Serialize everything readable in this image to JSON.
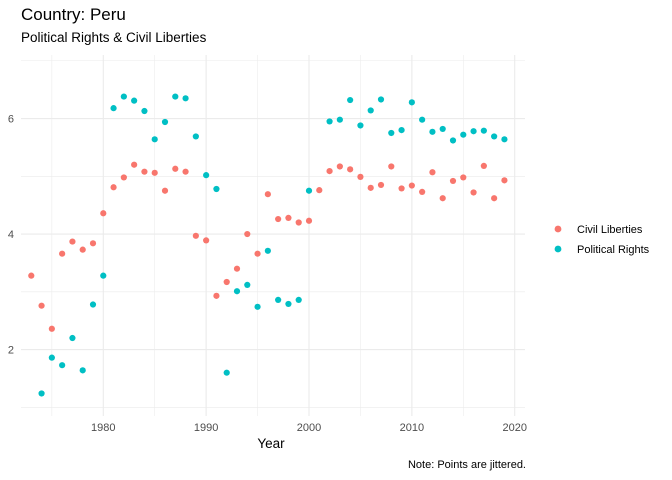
{
  "title": "Country: Peru",
  "subtitle": "Political Rights & Civil Liberties",
  "caption": "Note: Points are jittered.",
  "chart_data": {
    "type": "scatter",
    "xlabel": "Year",
    "ylabel": "",
    "xlim": [
      1972,
      2021
    ],
    "ylim": [
      0.85,
      7.1
    ],
    "x_ticks": [
      1980,
      1990,
      2000,
      2010,
      2020
    ],
    "y_ticks": [
      2,
      4,
      6
    ],
    "grid": true,
    "legend_position": "right",
    "series": [
      {
        "name": "Civil Liberties",
        "color": "#F8766D",
        "points": [
          [
            1973,
            3.28
          ],
          [
            1974,
            2.76
          ],
          [
            1975,
            2.36
          ],
          [
            1976,
            3.66
          ],
          [
            1977,
            3.87
          ],
          [
            1978,
            3.73
          ],
          [
            1979,
            3.84
          ],
          [
            1980,
            4.36
          ],
          [
            1981,
            4.81
          ],
          [
            1982,
            4.98
          ],
          [
            1983,
            5.2
          ],
          [
            1984,
            5.08
          ],
          [
            1985,
            5.06
          ],
          [
            1986,
            4.75
          ],
          [
            1987,
            5.13
          ],
          [
            1988,
            5.08
          ],
          [
            1989,
            3.97
          ],
          [
            1990,
            3.89
          ],
          [
            1991,
            2.93
          ],
          [
            1992,
            3.17
          ],
          [
            1993,
            3.4
          ],
          [
            1994,
            4.0
          ],
          [
            1995,
            3.66
          ],
          [
            1996,
            4.69
          ],
          [
            1997,
            4.26
          ],
          [
            1998,
            4.28
          ],
          [
            1999,
            4.2
          ],
          [
            2000,
            4.23
          ],
          [
            2001,
            4.76
          ],
          [
            2002,
            5.09
          ],
          [
            2003,
            5.17
          ],
          [
            2004,
            5.12
          ],
          [
            2005,
            4.99
          ],
          [
            2006,
            4.8
          ],
          [
            2007,
            4.85
          ],
          [
            2008,
            5.17
          ],
          [
            2009,
            4.79
          ],
          [
            2010,
            4.84
          ],
          [
            2011,
            4.73
          ],
          [
            2012,
            5.07
          ],
          [
            2013,
            4.62
          ],
          [
            2014,
            4.92
          ],
          [
            2015,
            4.98
          ],
          [
            2016,
            4.72
          ],
          [
            2017,
            5.18
          ],
          [
            2018,
            4.62
          ],
          [
            2019,
            4.93
          ]
        ]
      },
      {
        "name": "Political Rights",
        "color": "#00BFC4",
        "points": [
          [
            1974,
            1.24
          ],
          [
            1975,
            1.86
          ],
          [
            1976,
            1.73
          ],
          [
            1977,
            2.2
          ],
          [
            1978,
            1.64
          ],
          [
            1979,
            2.78
          ],
          [
            1980,
            3.28
          ],
          [
            1981,
            6.18
          ],
          [
            1982,
            6.38
          ],
          [
            1983,
            6.31
          ],
          [
            1984,
            6.13
          ],
          [
            1985,
            5.64
          ],
          [
            1986,
            5.94
          ],
          [
            1987,
            6.38
          ],
          [
            1988,
            6.35
          ],
          [
            1989,
            5.69
          ],
          [
            1990,
            5.02
          ],
          [
            1991,
            4.78
          ],
          [
            1992,
            1.6
          ],
          [
            1993,
            3.01
          ],
          [
            1994,
            3.12
          ],
          [
            1995,
            2.74
          ],
          [
            1996,
            3.71
          ],
          [
            1997,
            2.86
          ],
          [
            1998,
            2.79
          ],
          [
            1999,
            2.86
          ],
          [
            2000,
            4.75
          ],
          [
            2002,
            5.95
          ],
          [
            2003,
            5.98
          ],
          [
            2004,
            6.32
          ],
          [
            2005,
            5.88
          ],
          [
            2006,
            6.14
          ],
          [
            2007,
            6.33
          ],
          [
            2008,
            5.75
          ],
          [
            2009,
            5.8
          ],
          [
            2010,
            6.28
          ],
          [
            2011,
            5.98
          ],
          [
            2012,
            5.77
          ],
          [
            2013,
            5.82
          ],
          [
            2014,
            5.62
          ],
          [
            2015,
            5.72
          ],
          [
            2016,
            5.78
          ],
          [
            2017,
            5.79
          ],
          [
            2018,
            5.69
          ],
          [
            2019,
            5.64
          ]
        ]
      }
    ]
  }
}
